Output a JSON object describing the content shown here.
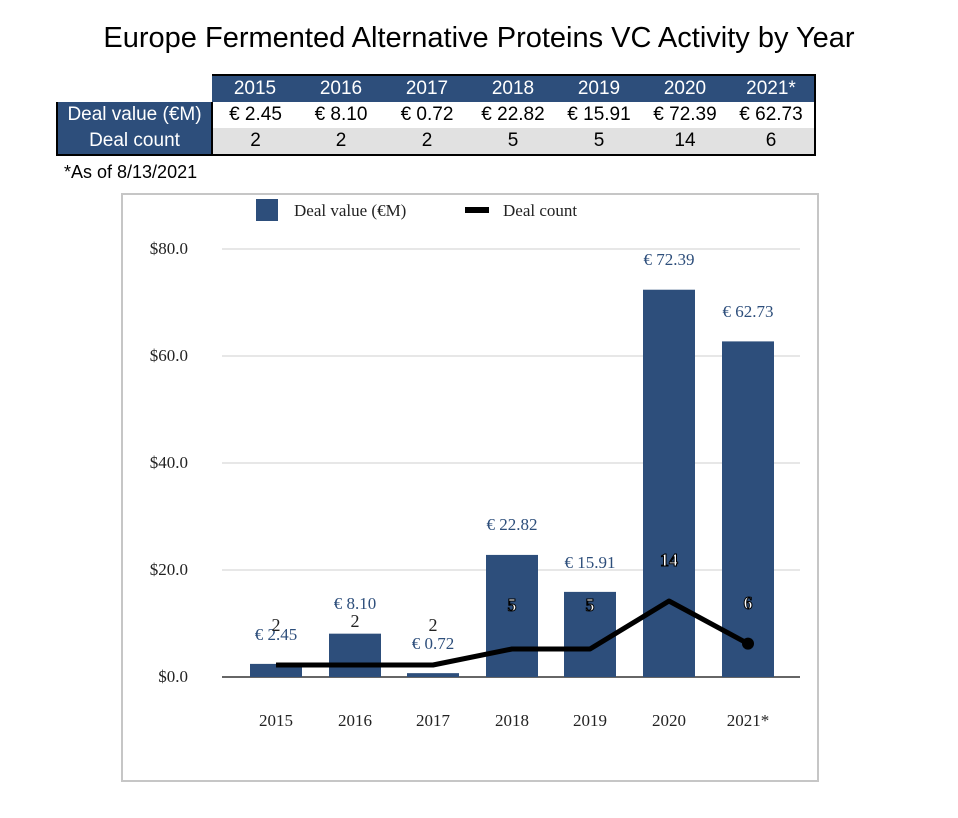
{
  "title": "Europe Fermented Alternative Proteins VC Activity by Year",
  "table": {
    "years": [
      "2015",
      "2016",
      "2017",
      "2018",
      "2019",
      "2020",
      "2021*"
    ],
    "value_label": "Deal value (€M)",
    "count_label": "Deal count",
    "values": [
      "€ 2.45",
      "€ 8.10",
      "€ 0.72",
      "€ 22.82",
      "€ 15.91",
      "€ 72.39",
      "€ 62.73"
    ],
    "counts": [
      "2",
      "2",
      "2",
      "5",
      "5",
      "14",
      "6"
    ]
  },
  "footnote": "*As of 8/13/2021",
  "colors": {
    "bar": "#2d4e7b",
    "line": "#000000",
    "header_bg": "#2d4e7b",
    "grid": "#cfcfcf"
  },
  "chart_data": {
    "type": "bar+line",
    "categories": [
      "2015",
      "2016",
      "2017",
      "2018",
      "2019",
      "2020",
      "2021*"
    ],
    "series": [
      {
        "name": "Deal value (€M)",
        "type": "bar",
        "values": [
          2.45,
          8.1,
          0.72,
          22.82,
          15.91,
          72.39,
          62.73
        ],
        "labels": [
          "€ 2.45",
          "€ 8.10",
          "€ 0.72",
          "€ 22.82",
          "€ 15.91",
          "€ 72.39",
          "€ 62.73"
        ]
      },
      {
        "name": "Deal count",
        "type": "line",
        "values": [
          2,
          2,
          2,
          5,
          5,
          14,
          6
        ],
        "labels": [
          "2",
          "2",
          "2",
          "5",
          "5",
          "14",
          "6"
        ]
      }
    ],
    "y_ticks": [
      "$0.0",
      "$20.0",
      "$40.0",
      "$60.0",
      "$80.0"
    ],
    "ylim": [
      0,
      80
    ],
    "legend": [
      "Deal value (€M)",
      "Deal count"
    ],
    "legend_position": "top",
    "grid": true
  }
}
